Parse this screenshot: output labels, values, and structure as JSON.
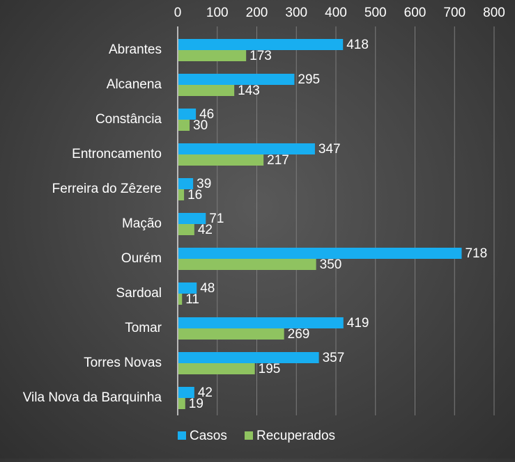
{
  "chart_data": {
    "type": "bar",
    "orientation": "horizontal",
    "title": "",
    "xlabel": "",
    "ylabel": "",
    "xlim": [
      0,
      800
    ],
    "x_ticks": [
      0,
      100,
      200,
      300,
      400,
      500,
      600,
      700,
      800
    ],
    "x_axis_position": "top",
    "grid": true,
    "legend_position": "bottom",
    "categories": [
      "Abrantes",
      "Alcanena",
      "Constância",
      "Entroncamento",
      "Ferreira do Zêzere",
      "Mação",
      "Ourém",
      "Sardoal",
      "Tomar",
      "Torres Novas",
      "Vila Nova da Barquinha"
    ],
    "series": [
      {
        "name": "Casos",
        "color": "#18aef0",
        "values": [
          418,
          295,
          46,
          347,
          39,
          71,
          718,
          48,
          419,
          357,
          42
        ]
      },
      {
        "name": "Recuperados",
        "color": "#8fc360",
        "values": [
          173,
          143,
          30,
          217,
          16,
          42,
          350,
          11,
          269,
          195,
          19
        ]
      }
    ]
  }
}
